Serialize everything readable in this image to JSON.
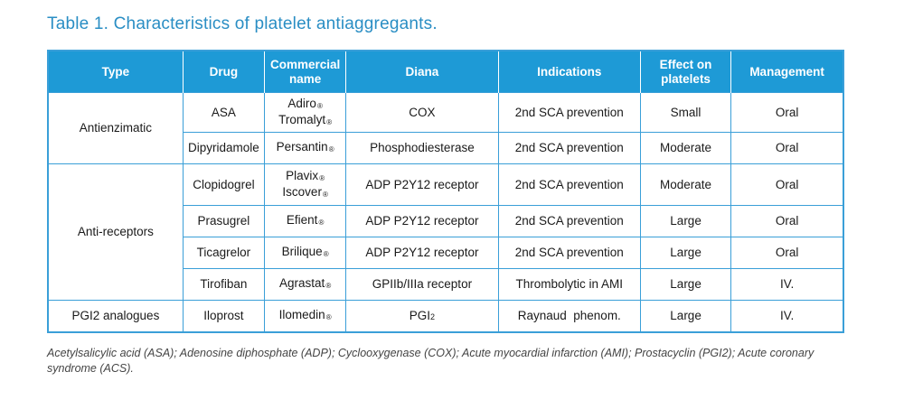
{
  "title": "Table 1. Characteristics of platelet antiaggregants.",
  "headers": {
    "type": "Type",
    "drug": "Drug",
    "commercial_name": "Commercial name",
    "diana": "Diana",
    "indications": "Indications",
    "effect": "Effect on platelets",
    "management": "Management"
  },
  "types": {
    "antienzimatic": "Antienzimatic",
    "antireceptors": "Anti-receptors",
    "pgi2": "PGI2 analogues"
  },
  "reg_mark": "®",
  "rows": [
    {
      "drug": "ASA",
      "names": [
        "Adiro",
        "Tromalyt"
      ],
      "diana": "COX",
      "indications": "2nd SCA prevention",
      "effect": "Small",
      "management": "Oral"
    },
    {
      "drug": "Dipyridamole",
      "names": [
        "Persantin"
      ],
      "diana": "Phosphodiesterase",
      "indications": "2nd SCA prevention",
      "effect": "Moderate",
      "management": "Oral"
    },
    {
      "drug": "Clopidogrel",
      "names": [
        "Plavix",
        "Iscover"
      ],
      "diana": "ADP P2Y12 receptor",
      "indications": "2nd SCA prevention",
      "effect": "Moderate",
      "management": "Oral"
    },
    {
      "drug": "Prasugrel",
      "names": [
        "Efient"
      ],
      "diana": "ADP P2Y12 receptor",
      "indications": "2nd SCA prevention",
      "effect": "Large",
      "management": "Oral"
    },
    {
      "drug": "Ticagrelor",
      "names": [
        "Brilique"
      ],
      "diana": "ADP P2Y12 receptor",
      "indications": "2nd SCA prevention",
      "effect": "Large",
      "management": "Oral"
    },
    {
      "drug": "Tirofiban",
      "names": [
        "Agrastat"
      ],
      "diana": "GPIIb/IIIa receptor",
      "indications": "Thrombolytic in AMI",
      "effect": "Large",
      "management": "IV."
    },
    {
      "drug": "Iloprost",
      "names": [
        "Ilomedin"
      ],
      "diana_main": "PGI",
      "diana_sub": "2",
      "indications": "Raynaud  phenom.",
      "effect": "Large",
      "management": "IV."
    }
  ],
  "footnote": "Acetylsalicylic acid (ASA); Adenosine diphosphate (ADP); Cyclooxygenase (COX); Acute myocardial infarction (AMI); Prostacyclin (PGI2); Acute coronary syndrome (ACS)."
}
